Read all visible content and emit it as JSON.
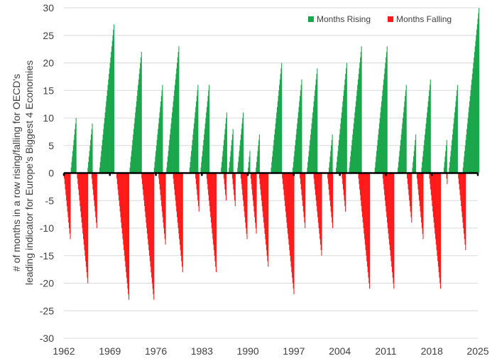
{
  "chart_data": {
    "type": "bar",
    "title": "",
    "xlabel": "",
    "ylabel_lines": [
      "# of months in a row rising/falling for OECD's",
      "leading indicator for Europe's Biggest 4 Economies"
    ],
    "ylim": [
      -30,
      30
    ],
    "yticks": [
      -30,
      -25,
      -20,
      -15,
      -10,
      -5,
      0,
      5,
      10,
      15,
      20,
      25,
      30
    ],
    "xlim": [
      1962,
      2025
    ],
    "xticks": [
      1962,
      1969,
      1976,
      1983,
      1990,
      1997,
      2004,
      2011,
      2018,
      2025
    ],
    "grid": "horizontal",
    "legend_position": "top-right",
    "series": [
      {
        "name": "Months Rising",
        "color": "#1aa64a",
        "runs": [
          {
            "start": 1963.05,
            "peak": 10
          },
          {
            "start": 1965.6,
            "peak": 9
          },
          {
            "start": 1967.4,
            "peak": 27
          },
          {
            "start": 1972.0,
            "peak": 22
          },
          {
            "start": 1975.7,
            "peak": 16
          },
          {
            "start": 1977.6,
            "peak": 23
          },
          {
            "start": 1981.1,
            "peak": 16
          },
          {
            "start": 1982.8,
            "peak": 16
          },
          {
            "start": 1985.9,
            "peak": 11
          },
          {
            "start": 1987.1,
            "peak": 8
          },
          {
            "start": 1988.4,
            "peak": 11
          },
          {
            "start": 1990.0,
            "peak": 4
          },
          {
            "start": 1991.2,
            "peak": 7
          },
          {
            "start": 1993.5,
            "peak": 20
          },
          {
            "start": 1996.8,
            "peak": 17
          },
          {
            "start": 1999.0,
            "peak": 19
          },
          {
            "start": 2002.3,
            "peak": 7
          },
          {
            "start": 2003.4,
            "peak": 20
          },
          {
            "start": 2005.4,
            "peak": 23
          },
          {
            "start": 2009.3,
            "peak": 23
          },
          {
            "start": 2012.8,
            "peak": 16
          },
          {
            "start": 2015.0,
            "peak": 7
          },
          {
            "start": 2016.4,
            "peak": 17
          },
          {
            "start": 2019.8,
            "peak": 6
          },
          {
            "start": 2020.6,
            "peak": 16
          },
          {
            "start": 2022.7,
            "peak": 30
          }
        ]
      },
      {
        "name": "Months Falling",
        "color": "#ff1a1a",
        "runs": [
          {
            "start": 1962.0,
            "peak": -12
          },
          {
            "start": 1964.0,
            "peak": -20
          },
          {
            "start": 1966.2,
            "peak": -10
          },
          {
            "start": 1970.0,
            "peak": -23
          },
          {
            "start": 1973.8,
            "peak": -23
          },
          {
            "start": 1976.4,
            "peak": -13
          },
          {
            "start": 1978.6,
            "peak": -18
          },
          {
            "start": 1982.0,
            "peak": -7
          },
          {
            "start": 1983.7,
            "peak": -18
          },
          {
            "start": 1986.3,
            "peak": -5
          },
          {
            "start": 1987.6,
            "peak": -6
          },
          {
            "start": 1988.9,
            "peak": -12
          },
          {
            "start": 1990.4,
            "peak": -11
          },
          {
            "start": 1991.7,
            "peak": -17
          },
          {
            "start": 1995.2,
            "peak": -22
          },
          {
            "start": 1997.9,
            "peak": -10
          },
          {
            "start": 2000.0,
            "peak": -15
          },
          {
            "start": 2002.1,
            "peak": -10
          },
          {
            "start": 2004.3,
            "peak": -7
          },
          {
            "start": 2006.8,
            "peak": -21
          },
          {
            "start": 2010.5,
            "peak": -21
          },
          {
            "start": 2014.2,
            "peak": -9
          },
          {
            "start": 2015.7,
            "peak": -12
          },
          {
            "start": 2017.6,
            "peak": -21
          },
          {
            "start": 2020.2,
            "peak": -2
          },
          {
            "start": 2022.0,
            "peak": -14
          }
        ]
      }
    ]
  }
}
